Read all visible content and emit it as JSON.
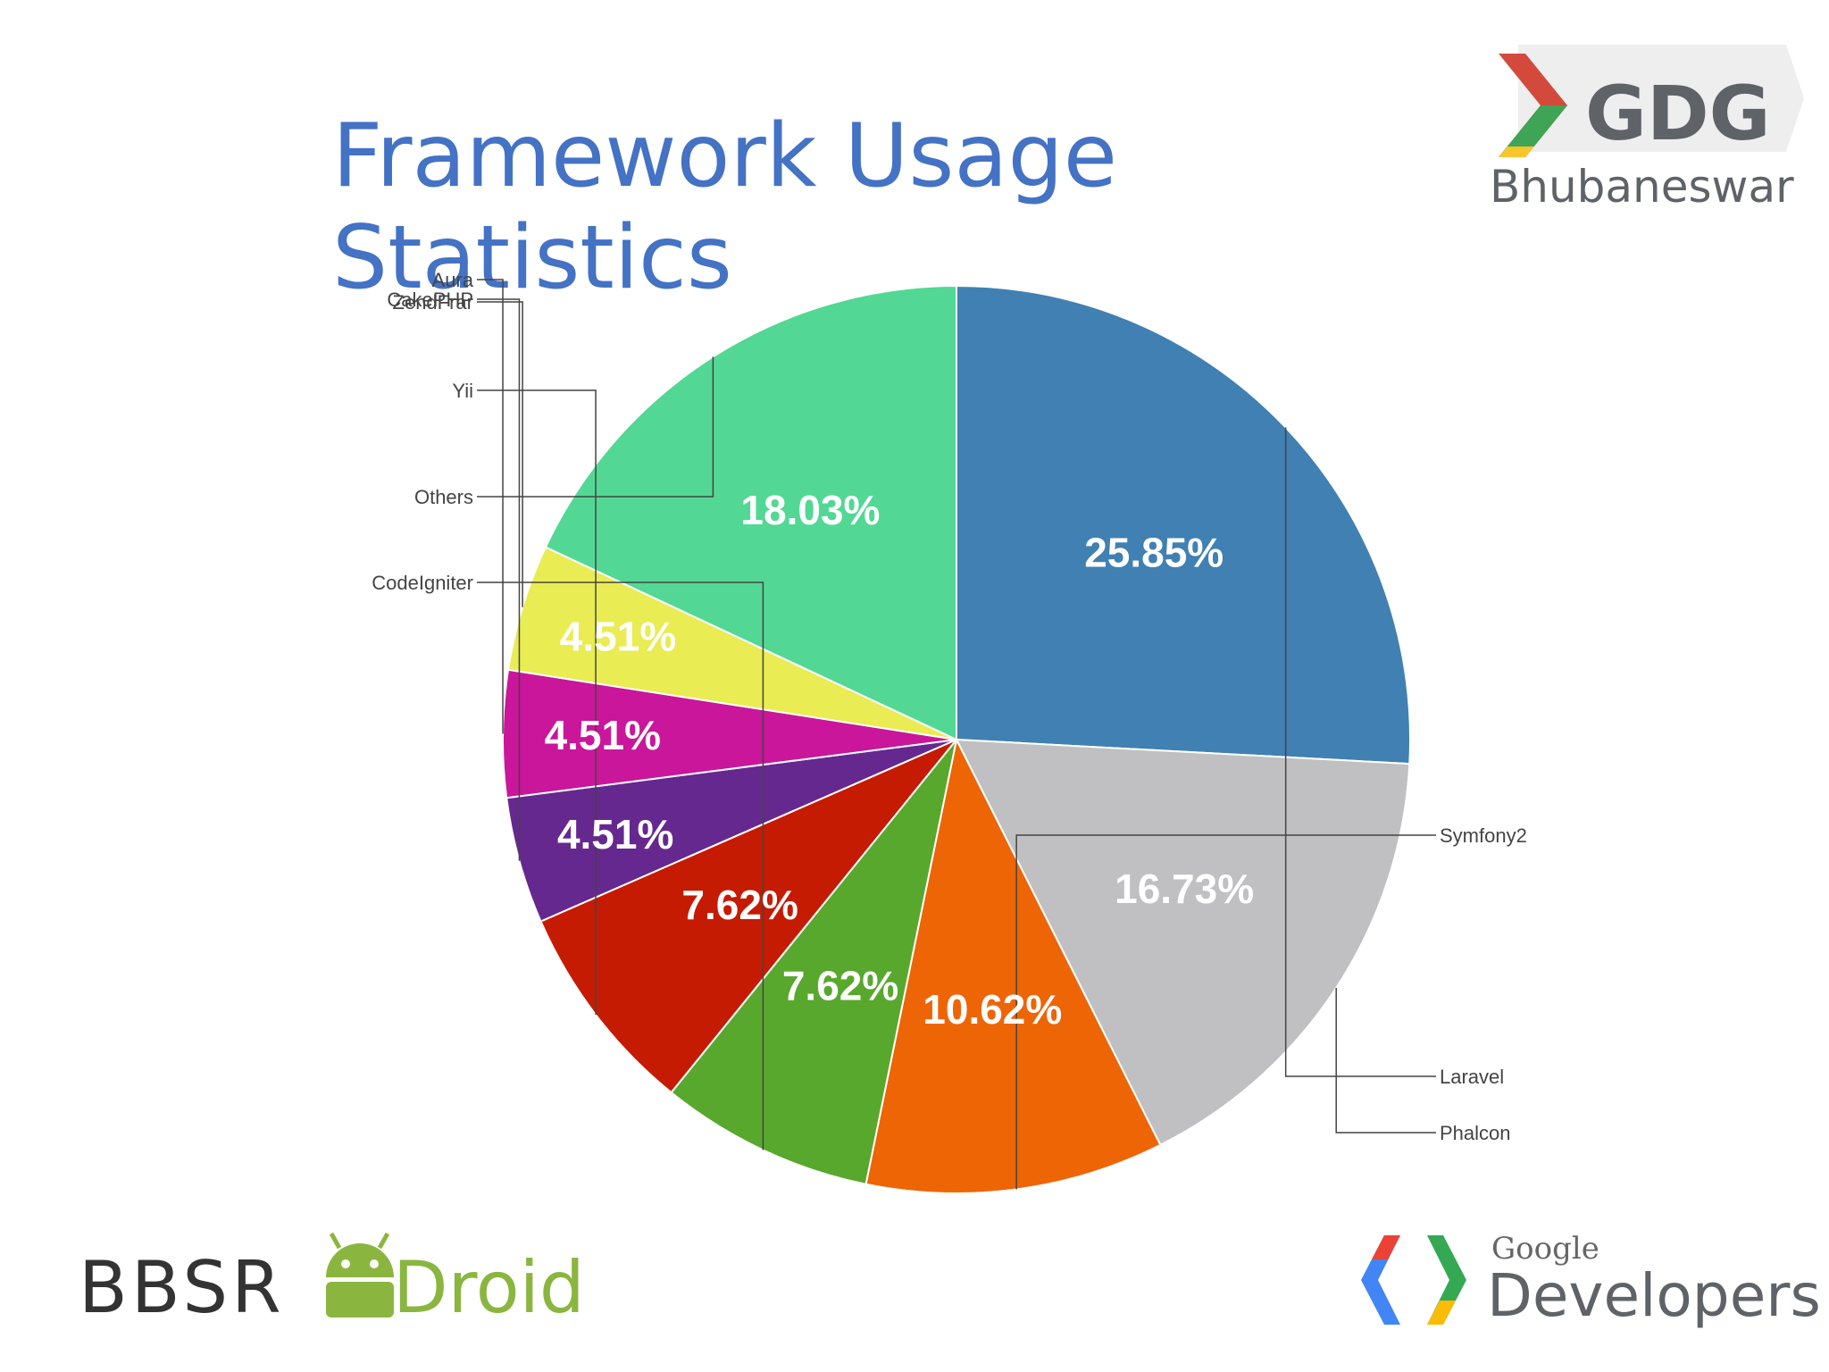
{
  "title": "Framework Usage Statistics",
  "chart_data": {
    "type": "pie",
    "start_angle_deg": -90,
    "slices": [
      {
        "label": "Laravel",
        "value": 25.85,
        "display": "25.85%",
        "color": "#4180b2"
      },
      {
        "label": "Phalcon",
        "value": 16.73,
        "display": "16.73%",
        "color": "#c0bfc1"
      },
      {
        "label": "Symfony2",
        "value": 10.62,
        "display": "10.62%",
        "color": "#ee6506"
      },
      {
        "label": "CodeIgniter",
        "value": 7.62,
        "display": "7.62%",
        "color": "#58a82e"
      },
      {
        "label": "Yii",
        "value": 7.62,
        "display": "7.62%",
        "color": "#c51b02"
      },
      {
        "label": "CakePHP",
        "value": 4.51,
        "display": "4.51%",
        "color": "#65288f"
      },
      {
        "label": "Aura",
        "value": 4.51,
        "display": "4.51%",
        "color": "#c9169b"
      },
      {
        "label": "ZendFramework",
        "value": 4.51,
        "display": "4.51%",
        "color": "#e9ec52"
      },
      {
        "label": "Others",
        "value": 18.03,
        "display": "18.03%",
        "color": "#52d894"
      }
    ],
    "edge_labels": [
      "CakePHP",
      "Yii",
      "CodeIgniter",
      "Symfony2",
      "Phalcon",
      "Aura",
      "ZendFrar",
      "Others",
      "Laravel"
    ]
  },
  "logos": {
    "gdg": {
      "mark": "GDG",
      "city": "Bhubaneswar"
    },
    "bbsr": {
      "left": "BBSR",
      "right": "Droid"
    },
    "google_developers": {
      "small": "Google",
      "large": "Developers"
    }
  }
}
